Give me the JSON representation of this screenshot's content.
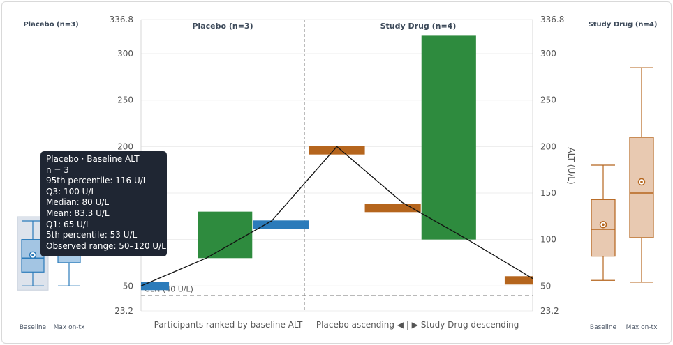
{
  "chart_data": {
    "type": "bar",
    "title": "",
    "xlabel": "Participants ranked by baseline ALT — Placebo ascending ◀ | ▶ Study Drug descending",
    "ylabel_right": "ALT (U/L)",
    "ylim": [
      23.2,
      336.8
    ],
    "y_axis_ticks": [
      "336.8",
      "300",
      "250",
      "200",
      "150",
      "100",
      "50",
      "23.2"
    ],
    "uln": {
      "label": "ULN (40 U/L)",
      "value": 40
    },
    "groups": [
      {
        "name": "Placebo (n=3)",
        "panel_label": "Placebo (n=3)",
        "color": "#2b7bba"
      },
      {
        "name": "Study Drug (n=4)",
        "panel_label": "Study Drug (n=4)",
        "color": "#b5651d"
      }
    ],
    "bars": [
      {
        "group": "Placebo",
        "kind": "baseline",
        "value": 50
      },
      {
        "group": "Placebo",
        "kind": "change",
        "low": 80,
        "high": 130
      },
      {
        "group": "Placebo",
        "kind": "baseline",
        "value": 116
      },
      {
        "group": "Study Drug",
        "kind": "baseline",
        "value": 196
      },
      {
        "group": "Study Drug",
        "kind": "baseline",
        "value": 134
      },
      {
        "group": "Study Drug",
        "kind": "change",
        "low": 100,
        "high": 320
      },
      {
        "group": "Study Drug",
        "kind": "baseline",
        "value": 56
      }
    ],
    "trend_line": [
      {
        "x": 0,
        "y": 50
      },
      {
        "x": 1,
        "y": 80
      },
      {
        "x": 2,
        "y": 120
      },
      {
        "x": 3,
        "y": 200
      },
      {
        "x": 4,
        "y": 140
      },
      {
        "x": 5,
        "y": 100
      },
      {
        "x": 6,
        "y": 58
      }
    ],
    "colors": {
      "placebo": "#2b7bba",
      "study_drug": "#b5651d",
      "change": "#2e8b3e"
    },
    "boxplots": {
      "scale": [
        23.2,
        336.8
      ],
      "x_labels": [
        "Baseline",
        "Max on-tx"
      ],
      "placebo": [
        {
          "label": "Baseline",
          "min": 50,
          "q1": 65,
          "median": 80,
          "q3": 100,
          "max": 120,
          "mean": 83.3,
          "highlighted": true
        },
        {
          "label": "Max on-tx",
          "min": 50,
          "q1": 75,
          "median": 95,
          "q3": 125,
          "max": 150,
          "mean": 100
        }
      ],
      "study_drug": [
        {
          "label": "Baseline",
          "min": 56,
          "q1": 82,
          "median": 111,
          "q3": 143,
          "max": 180,
          "mean": 116
        },
        {
          "label": "Max on-tx",
          "min": 54,
          "q1": 102,
          "median": 150,
          "q3": 210,
          "max": 285,
          "mean": 162
        }
      ]
    }
  },
  "tooltip": {
    "lines": [
      "Placebo · Baseline ALT",
      "n = 3",
      "95th percentile: 116 U/L",
      "Q3: 100 U/L",
      "Median: 80 U/L",
      "Mean: 83.3 U/L",
      "Q1: 65 U/L",
      "5th percentile: 53 U/L",
      "Observed range: 50–120 U/L"
    ]
  }
}
